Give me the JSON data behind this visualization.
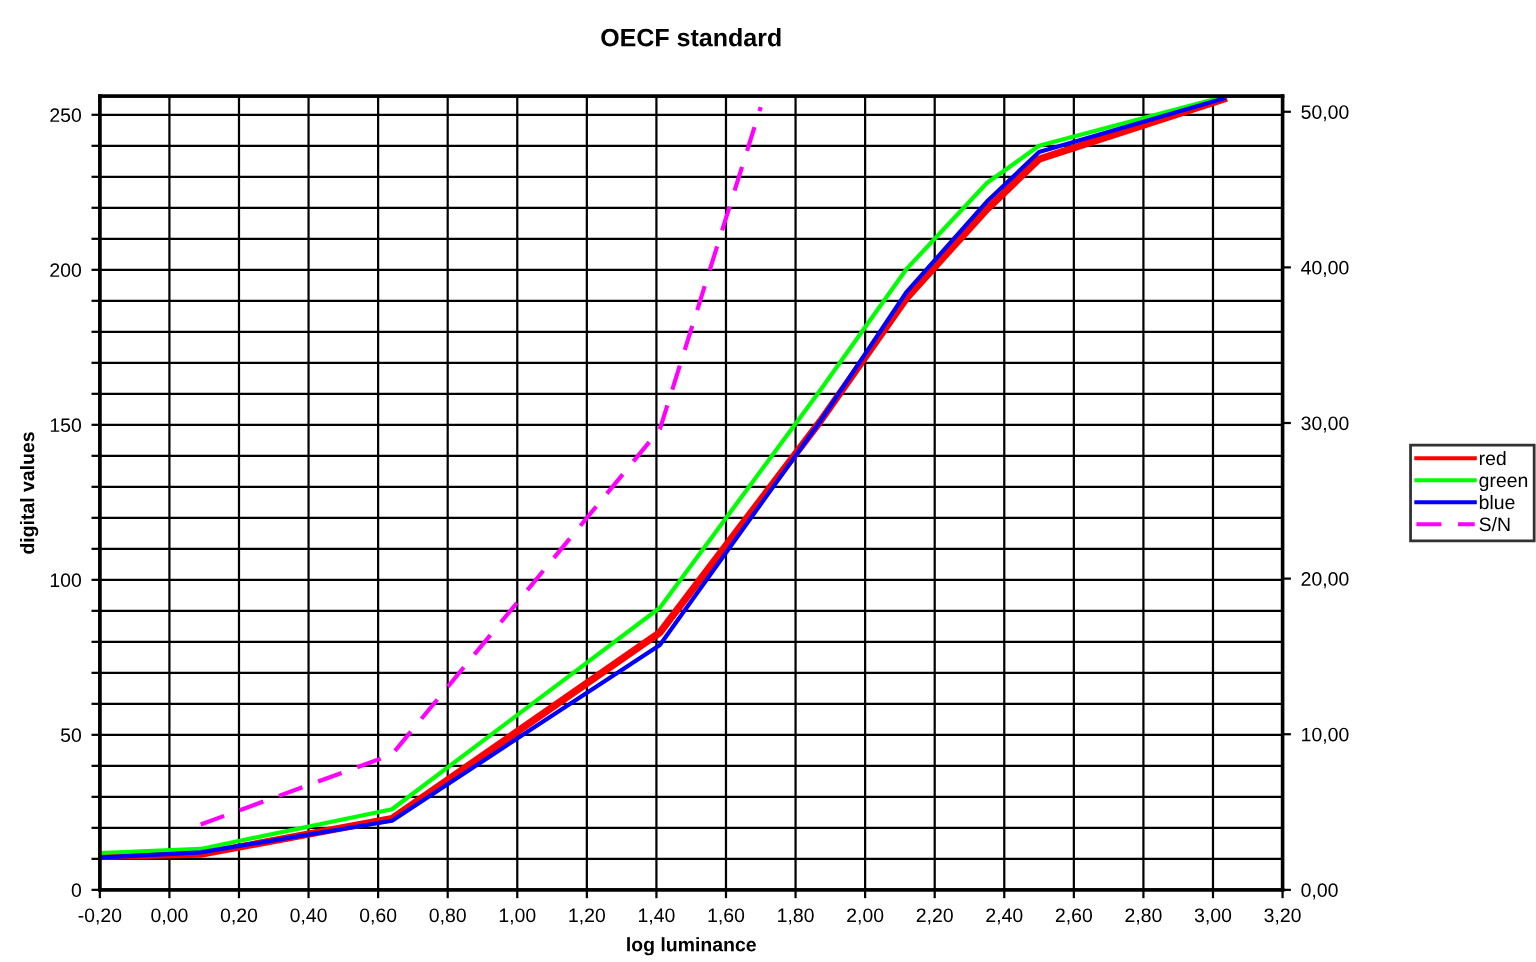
{
  "chart_data": {
    "type": "line",
    "title": "OECF standard",
    "xlabel": "log luminance",
    "ylabel": "digital values",
    "xlim": [
      -0.2,
      3.2
    ],
    "xticks": [
      {
        "value": -0.2,
        "label": "-0,20"
      },
      {
        "value": 0,
        "label": "0,00"
      },
      {
        "value": 0.2,
        "label": "0,20"
      },
      {
        "value": 0.4,
        "label": "0,40"
      },
      {
        "value": 0.6,
        "label": "0,60"
      },
      {
        "value": 0.8,
        "label": "0,80"
      },
      {
        "value": 1.0,
        "label": "1,00"
      },
      {
        "value": 1.2,
        "label": "1,20"
      },
      {
        "value": 1.4,
        "label": "1,40"
      },
      {
        "value": 1.6,
        "label": "1,60"
      },
      {
        "value": 1.8,
        "label": "1,80"
      },
      {
        "value": 2.0,
        "label": "2,00"
      },
      {
        "value": 2.2,
        "label": "2,20"
      },
      {
        "value": 2.4,
        "label": "2,40"
      },
      {
        "value": 2.6,
        "label": "2,60"
      },
      {
        "value": 2.8,
        "label": "2,80"
      },
      {
        "value": 3.0,
        "label": "3,00"
      },
      {
        "value": 3.2,
        "label": "3,20"
      }
    ],
    "ylim": [
      0,
      256
    ],
    "yticks": [
      0,
      {
        "value": 10,
        "label": null
      },
      {
        "value": 20,
        "label": null
      },
      {
        "value": 30,
        "label": null
      },
      {
        "value": 40,
        "label": null
      },
      50,
      {
        "value": 60,
        "label": null
      },
      {
        "value": 70,
        "label": null
      },
      {
        "value": 80,
        "label": null
      },
      {
        "value": 90,
        "label": null
      },
      100,
      {
        "value": 110,
        "label": null
      },
      {
        "value": 120,
        "label": null
      },
      {
        "value": 130,
        "label": null
      },
      {
        "value": 140,
        "label": null
      },
      150,
      {
        "value": 160,
        "label": null
      },
      {
        "value": 170,
        "label": null
      },
      {
        "value": 180,
        "label": null
      },
      {
        "value": 190,
        "label": null
      },
      200,
      {
        "value": 210,
        "label": null
      },
      {
        "value": 220,
        "label": null
      },
      {
        "value": 230,
        "label": null
      },
      {
        "value": 240,
        "label": null
      },
      250
    ],
    "y2lim": [
      0,
      51
    ],
    "y2ticks": [
      {
        "value": 0,
        "label": "0,00"
      },
      {
        "value": 10,
        "label": "10,00"
      },
      {
        "value": 20,
        "label": "20,00"
      },
      {
        "value": 30,
        "label": "30,00"
      },
      {
        "value": 40,
        "label": "40,00"
      },
      {
        "value": 50,
        "label": "50,00"
      }
    ],
    "grid": true,
    "legend": "right",
    "marker": "none",
    "series": [
      {
        "name": "red",
        "color": "#ff0000",
        "x": [
          -0.2,
          0.09,
          0.64,
          1.41,
          1.87,
          2.12,
          2.35,
          2.5,
          3.03
        ],
        "values": [
          10.8,
          11.5,
          23,
          83,
          151,
          191,
          219.5,
          235.7,
          255
        ]
      },
      {
        "name": "green",
        "color": "#00ff00",
        "x": [
          -0.2,
          0.09,
          0.64,
          1.41,
          1.87,
          2.12,
          2.35,
          2.5,
          3.03
        ],
        "values": [
          11.9,
          13.2,
          26,
          91,
          161,
          200.4,
          228,
          240,
          255.8
        ]
      },
      {
        "name": "blue",
        "color": "#0000ff",
        "x": [
          -0.2,
          0.09,
          0.64,
          1.41,
          1.87,
          2.12,
          2.35,
          2.5,
          3.03
        ],
        "values": [
          10.4,
          12.1,
          22.3,
          79,
          151,
          193,
          222,
          238,
          255.2
        ]
      },
      {
        "name": "S/N",
        "color": "#ff00ff",
        "axis": "y2",
        "line_style": "dashed",
        "x": [
          0.09,
          0.64,
          1.41,
          1.7
        ],
        "values": [
          4.2,
          8.7,
          29.6,
          50.3
        ]
      }
    ]
  }
}
